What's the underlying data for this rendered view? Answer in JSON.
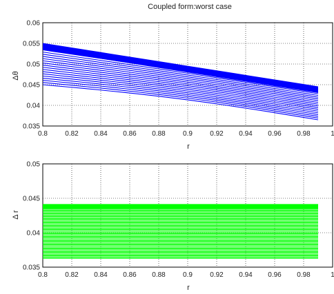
{
  "chart_data": [
    {
      "type": "line",
      "title": "Coupled form:worst case",
      "xlabel": "r",
      "ylabel": "Δθ",
      "xlim": [
        0.8,
        1.0
      ],
      "ylim": [
        0.035,
        0.06
      ],
      "xticks": [
        "0.8",
        "0.82",
        "0.84",
        "0.86",
        "0.88",
        "0.9",
        "0.92",
        "0.94",
        "0.96",
        "0.98",
        "1"
      ],
      "yticks": [
        "0.035",
        "0.04",
        "0.045",
        "0.05",
        "0.055",
        "0.06"
      ],
      "grid": true,
      "color": "#0000ff",
      "x_range": [
        0.8,
        0.99
      ],
      "band": {
        "count": 20,
        "start": [
          0.045,
          0.055
        ],
        "end": [
          0.0365,
          0.0445
        ]
      }
    },
    {
      "type": "line",
      "title": "",
      "xlabel": "r",
      "ylabel": "Δ r",
      "xlim": [
        0.8,
        1.0
      ],
      "ylim": [
        0.035,
        0.05
      ],
      "xticks": [
        "0.8",
        "0.82",
        "0.84",
        "0.86",
        "0.88",
        "0.9",
        "0.92",
        "0.94",
        "0.96",
        "0.98",
        "1"
      ],
      "yticks": [
        "0.035",
        "0.04",
        "0.045",
        "0.05"
      ],
      "grid": true,
      "color": "#00ff00",
      "x_range": [
        0.8,
        0.99
      ],
      "levels": [
        0.0363,
        0.0367,
        0.0372,
        0.0377,
        0.0383,
        0.0388,
        0.0394,
        0.0399,
        0.0405,
        0.041,
        0.0415,
        0.042,
        0.0424,
        0.0428,
        0.0432,
        0.0435,
        0.0437,
        0.0439,
        0.044,
        0.0441
      ]
    }
  ]
}
